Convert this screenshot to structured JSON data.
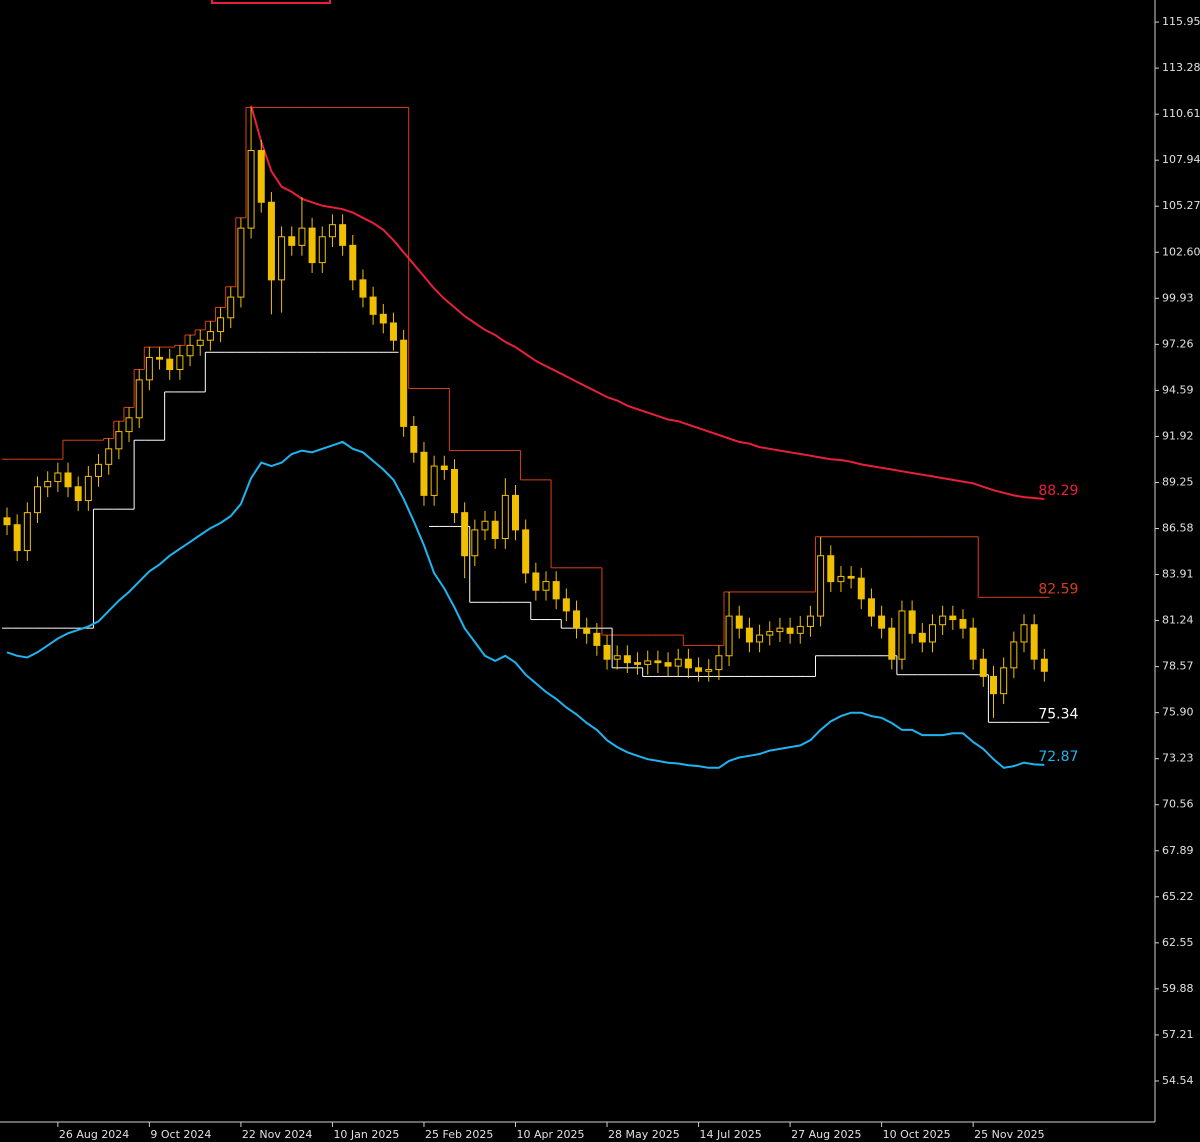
{
  "chart_data": {
    "type": "candlestick",
    "color": "#f0c000",
    "grid": false,
    "ylim": [
      52.16,
      117.23
    ],
    "yticks": [
      115.95,
      113.28,
      110.61,
      107.94,
      105.27,
      {
        "value": 102.6,
        "label": "102.60"
      },
      99.93,
      97.26,
      94.59,
      91.92,
      89.25,
      86.58,
      83.91,
      81.24,
      78.57,
      {
        "value": 75.9,
        "label": "75.90"
      },
      73.23,
      70.56,
      67.89,
      65.22,
      62.55,
      59.88,
      57.21,
      54.54
    ],
    "categories": [
      null,
      null,
      null,
      null,
      null,
      "26 Aug 2024",
      null,
      null,
      null,
      null,
      null,
      null,
      null,
      null,
      "9 Oct 2024",
      null,
      null,
      null,
      null,
      null,
      null,
      null,
      null,
      "22 Nov 2024",
      null,
      null,
      null,
      null,
      null,
      null,
      null,
      null,
      "10 Jan 2025",
      null,
      null,
      null,
      null,
      null,
      null,
      null,
      null,
      "25 Feb 2025",
      null,
      null,
      null,
      null,
      null,
      null,
      null,
      null,
      "10 Apr 2025",
      null,
      null,
      null,
      null,
      null,
      null,
      null,
      null,
      "28 May 2025",
      null,
      null,
      null,
      null,
      null,
      null,
      null,
      null,
      "14 Jul 2025",
      null,
      null,
      null,
      null,
      null,
      null,
      null,
      null,
      "27 Aug 2025",
      null,
      null,
      null,
      null,
      null,
      null,
      null,
      null,
      "10 Oct 2025",
      null,
      null,
      null,
      null,
      null,
      null,
      null,
      null,
      "25 Nov 2025",
      null,
      null,
      null,
      null,
      null,
      null,
      null
    ],
    "open": [
      87.2,
      86.8,
      85.3,
      87.5,
      89.0,
      89.3,
      89.8,
      89.0,
      88.2,
      89.6,
      90.3,
      91.2,
      92.2,
      93.0,
      95.2,
      96.5,
      96.4,
      95.8,
      96.6,
      97.2,
      97.5,
      98.0,
      98.8,
      100.0,
      104.0,
      108.5,
      105.5,
      101.0,
      103.5,
      103.0,
      104.0,
      102.0,
      103.5,
      104.2,
      103.0,
      101.0,
      100.0,
      99.0,
      98.5,
      97.5,
      92.5,
      91.0,
      88.5,
      90.2,
      90.0,
      87.5,
      85.0,
      86.5,
      87.0,
      86.0,
      88.5,
      86.5,
      84.0,
      83.0,
      83.5,
      82.5,
      81.8,
      80.8,
      80.5,
      79.8,
      79.0,
      79.2,
      78.8,
      78.7,
      78.9,
      78.8,
      78.6,
      79.0,
      78.5,
      78.3,
      78.4,
      79.2,
      81.5,
      80.8,
      80.0,
      80.4,
      80.6,
      80.8,
      80.5,
      80.9,
      81.5,
      85.0,
      83.5,
      83.8,
      83.7,
      82.5,
      81.5,
      80.8,
      79.0,
      81.8,
      80.5,
      80.0,
      81.0,
      81.5,
      81.3,
      80.8,
      79.0,
      78.0,
      77.0,
      78.5,
      80.0,
      81.0,
      79.0
    ],
    "high": [
      87.8,
      87.4,
      88.1,
      89.6,
      89.9,
      90.4,
      90.4,
      89.6,
      90.2,
      90.9,
      91.8,
      92.8,
      93.6,
      95.8,
      97.1,
      97.1,
      97.0,
      97.2,
      97.8,
      98.1,
      98.6,
      99.4,
      100.6,
      104.6,
      111.0,
      109.1,
      106.1,
      104.1,
      104.1,
      105.8,
      104.6,
      104.1,
      104.8,
      104.8,
      103.6,
      101.6,
      100.6,
      99.6,
      99.1,
      98.1,
      93.1,
      91.6,
      90.8,
      90.8,
      90.6,
      88.1,
      87.1,
      87.6,
      87.6,
      89.5,
      89.1,
      87.1,
      84.6,
      84.1,
      84.1,
      83.1,
      82.4,
      81.4,
      81.1,
      80.4,
      79.8,
      79.8,
      79.4,
      79.5,
      79.5,
      79.4,
      79.6,
      79.6,
      79.1,
      79.0,
      79.8,
      82.9,
      82.1,
      81.4,
      81.0,
      81.2,
      81.4,
      81.4,
      81.5,
      82.1,
      86.1,
      85.6,
      84.4,
      84.4,
      84.3,
      83.1,
      82.1,
      81.4,
      82.4,
      82.4,
      81.1,
      81.6,
      82.1,
      82.1,
      81.9,
      81.4,
      79.6,
      78.6,
      79.1,
      80.6,
      81.6,
      81.6,
      79.6
    ],
    "low": [
      86.2,
      84.7,
      84.7,
      86.9,
      88.4,
      88.7,
      88.4,
      87.6,
      87.6,
      89.0,
      89.7,
      90.6,
      91.6,
      92.4,
      94.6,
      95.8,
      95.2,
      95.2,
      96.0,
      96.6,
      96.9,
      97.4,
      98.2,
      99.4,
      103.4,
      104.9,
      99.0,
      99.1,
      102.4,
      102.4,
      101.4,
      101.4,
      102.9,
      102.4,
      100.4,
      99.4,
      98.4,
      97.9,
      96.9,
      91.9,
      90.4,
      87.9,
      87.9,
      89.4,
      86.9,
      83.7,
      84.4,
      85.9,
      85.4,
      85.4,
      85.9,
      83.4,
      82.4,
      82.4,
      81.9,
      81.2,
      80.2,
      79.9,
      79.2,
      78.4,
      78.4,
      78.2,
      78.1,
      78.1,
      78.2,
      78.0,
      78.0,
      77.9,
      77.7,
      77.7,
      77.8,
      78.6,
      80.2,
      79.4,
      79.4,
      79.8,
      80.0,
      79.9,
      79.9,
      80.3,
      80.9,
      82.9,
      82.9,
      83.1,
      81.9,
      80.9,
      80.2,
      78.4,
      78.4,
      79.9,
      79.4,
      79.4,
      80.4,
      80.7,
      80.2,
      78.4,
      77.4,
      75.6,
      76.4,
      77.9,
      79.4,
      78.4,
      77.7
    ],
    "close": [
      86.8,
      85.3,
      87.5,
      89.0,
      89.3,
      89.8,
      89.0,
      88.2,
      89.6,
      90.3,
      91.2,
      92.2,
      93.0,
      95.2,
      96.5,
      96.4,
      95.8,
      96.6,
      97.2,
      97.5,
      98.0,
      98.8,
      100.0,
      104.0,
      108.5,
      105.5,
      101.0,
      103.5,
      103.0,
      104.0,
      102.0,
      103.5,
      104.2,
      103.0,
      101.0,
      100.0,
      99.0,
      98.5,
      97.5,
      92.5,
      91.0,
      88.5,
      90.2,
      90.0,
      87.5,
      85.0,
      86.5,
      87.0,
      86.0,
      88.5,
      86.5,
      84.0,
      83.0,
      83.5,
      82.5,
      81.8,
      80.8,
      80.5,
      79.8,
      79.0,
      79.2,
      78.8,
      78.7,
      78.9,
      78.8,
      78.6,
      79.0,
      78.5,
      78.3,
      78.4,
      79.2,
      81.5,
      80.8,
      80.0,
      80.4,
      80.6,
      80.8,
      80.5,
      80.9,
      81.5,
      85.0,
      83.5,
      83.8,
      83.7,
      82.5,
      81.5,
      80.8,
      79.0,
      81.8,
      80.5,
      80.0,
      81.0,
      81.5,
      81.3,
      80.8,
      79.0,
      78.0,
      77.0,
      78.5,
      80.0,
      81.0,
      79.0,
      78.3
    ],
    "series": [
      {
        "style": "line",
        "color": "#e8203c",
        "values": [
          null,
          null,
          null,
          null,
          null,
          null,
          null,
          null,
          null,
          null,
          null,
          null,
          null,
          null,
          null,
          null,
          null,
          null,
          null,
          null,
          null,
          null,
          null,
          null,
          111.1,
          109.0,
          107.3,
          106.4,
          106.1,
          105.7,
          105.5,
          105.3,
          105.2,
          105.1,
          104.9,
          104.6,
          104.3,
          103.9,
          103.3,
          102.6,
          101.9,
          101.2,
          100.5,
          99.9,
          99.4,
          98.9,
          98.5,
          98.1,
          97.8,
          97.4,
          97.1,
          96.7,
          96.3,
          96.0,
          95.7,
          95.4,
          95.1,
          94.8,
          94.5,
          94.2,
          94.0,
          93.7,
          93.5,
          93.3,
          93.1,
          92.9,
          92.8,
          92.6,
          92.4,
          92.2,
          92.0,
          91.8,
          91.6,
          91.5,
          91.3,
          91.2,
          91.1,
          91.0,
          90.9,
          90.8,
          90.7,
          90.6,
          90.55,
          90.45,
          90.3,
          90.2,
          90.1,
          90.0,
          89.9,
          89.8,
          89.7,
          89.6,
          89.5,
          89.4,
          89.3,
          89.2,
          89.0,
          88.8,
          88.65,
          88.5,
          88.4,
          88.35,
          88.29
        ]
      },
      {
        "style": "step",
        "color": "#d8401a",
        "values": [
          90.6,
          90.6,
          90.6,
          90.6,
          90.6,
          90.6,
          91.7,
          91.7,
          91.7,
          91.7,
          91.8,
          92.8,
          93.6,
          95.8,
          97.1,
          97.1,
          97.1,
          97.2,
          97.8,
          98.1,
          98.6,
          99.4,
          100.6,
          104.6,
          111.0,
          111.0,
          111.0,
          111.0,
          111.0,
          111.0,
          111.0,
          111.0,
          111.0,
          111.0,
          111.0,
          111.0,
          111.0,
          111.0,
          111.0,
          111.0,
          94.7,
          94.7,
          94.7,
          94.7,
          91.1,
          91.1,
          91.1,
          91.1,
          91.1,
          91.1,
          91.1,
          89.4,
          89.4,
          89.4,
          84.3,
          84.3,
          84.3,
          84.3,
          84.3,
          80.4,
          80.4,
          80.4,
          80.4,
          80.4,
          80.4,
          80.4,
          80.4,
          79.8,
          79.8,
          79.8,
          79.8,
          82.9,
          82.9,
          82.9,
          82.9,
          82.9,
          82.9,
          82.9,
          82.9,
          82.9,
          86.1,
          86.1,
          86.1,
          86.1,
          86.1,
          86.1,
          86.1,
          86.1,
          86.1,
          86.1,
          86.1,
          86.1,
          86.1,
          86.1,
          86.1,
          86.1,
          82.59,
          82.59,
          82.59,
          82.59,
          82.59,
          82.59,
          82.59
        ]
      },
      {
        "style": "step",
        "color": "#ffffff",
        "values": [
          80.8,
          80.8,
          80.8,
          80.8,
          80.8,
          80.8,
          80.8,
          80.8,
          80.8,
          87.7,
          87.7,
          87.7,
          87.7,
          91.7,
          91.7,
          91.7,
          94.5,
          94.5,
          94.5,
          94.5,
          96.8,
          96.8,
          96.8,
          96.8,
          96.8,
          96.8,
          96.8,
          96.8,
          96.8,
          96.8,
          96.8,
          96.8,
          96.8,
          96.8,
          96.8,
          96.8,
          96.8,
          96.8,
          96.8,
          null,
          null,
          null,
          86.7,
          86.7,
          86.7,
          86.7,
          82.3,
          82.3,
          82.3,
          82.3,
          82.3,
          82.3,
          81.3,
          81.3,
          81.3,
          80.8,
          80.8,
          80.8,
          80.8,
          80.8,
          78.5,
          78.5,
          78.5,
          78.0,
          78.0,
          78.0,
          78.0,
          78.0,
          78.0,
          78.0,
          78.0,
          78.0,
          78.0,
          78.0,
          78.0,
          78.0,
          78.0,
          78.0,
          78.0,
          78.0,
          79.2,
          79.2,
          79.2,
          79.2,
          79.2,
          79.2,
          79.2,
          79.2,
          78.1,
          78.1,
          78.1,
          78.1,
          78.1,
          78.1,
          78.1,
          78.1,
          78.1,
          75.34,
          75.34,
          75.34,
          75.34,
          75.34,
          75.34
        ]
      },
      {
        "style": "line",
        "color": "#1fb4f0",
        "values": [
          79.4,
          79.2,
          79.1,
          79.4,
          79.8,
          80.2,
          80.5,
          80.7,
          80.9,
          81.2,
          81.8,
          82.4,
          82.9,
          83.5,
          84.1,
          84.5,
          85.0,
          85.4,
          85.8,
          86.2,
          86.6,
          86.9,
          87.3,
          88.0,
          89.5,
          90.4,
          90.2,
          90.4,
          90.9,
          91.1,
          91.0,
          91.2,
          91.4,
          91.6,
          91.2,
          91.0,
          90.5,
          90.0,
          89.4,
          88.3,
          87.0,
          85.6,
          84.0,
          83.1,
          82.0,
          80.8,
          80.0,
          79.2,
          78.9,
          79.2,
          78.8,
          78.1,
          77.6,
          77.1,
          76.7,
          76.2,
          75.8,
          75.3,
          74.9,
          74.3,
          73.9,
          73.6,
          73.4,
          73.2,
          73.1,
          73.0,
          72.95,
          72.85,
          72.8,
          72.7,
          72.7,
          73.1,
          73.3,
          73.4,
          73.5,
          73.7,
          73.8,
          73.9,
          74.0,
          74.3,
          74.9,
          75.4,
          75.7,
          75.9,
          75.9,
          75.7,
          75.6,
          75.3,
          74.9,
          74.9,
          74.6,
          74.6,
          74.6,
          74.7,
          74.7,
          74.2,
          73.8,
          73.2,
          72.7,
          72.8,
          73.0,
          72.9,
          72.87
        ]
      }
    ]
  }
}
